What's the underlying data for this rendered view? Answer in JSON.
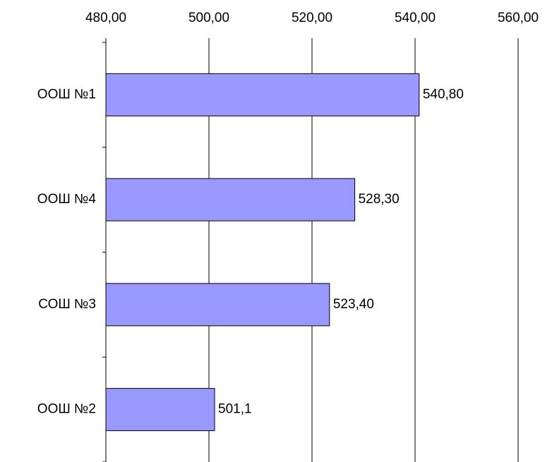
{
  "chart_data": {
    "type": "bar",
    "orientation": "horizontal",
    "categories": [
      "ООШ №1",
      "ООШ №4",
      "СОШ №3",
      "ООШ №2"
    ],
    "values": [
      540.8,
      528.3,
      523.4,
      501.1
    ],
    "value_labels": [
      "540,80",
      "528,30",
      "523,40",
      "501,1"
    ],
    "color": "#9999ff",
    "xlim": [
      480,
      560
    ],
    "xticks": [
      {
        "value": 480,
        "label": "480,00"
      },
      {
        "value": 500,
        "label": "500,00"
      },
      {
        "value": 520,
        "label": "520,00"
      },
      {
        "value": 540,
        "label": "540,00"
      },
      {
        "value": 560,
        "label": "560,00"
      }
    ],
    "grid": true
  }
}
